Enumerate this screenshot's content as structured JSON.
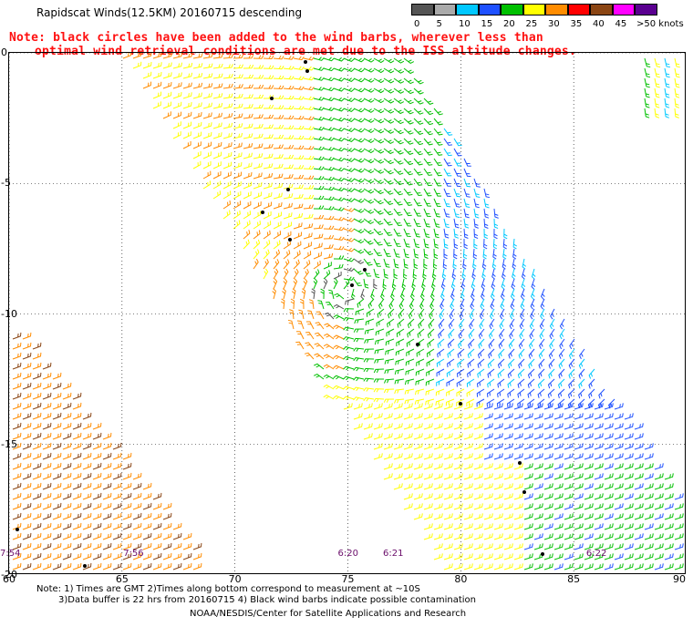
{
  "header": {
    "title": "Rapidscat Winds(12.5KM) 20160715 descending",
    "note_line1": "Note: black circles have been added to the wind barbs, wherever less than",
    "note_line2": "optimal wind retrieval conditions are met due to the ISS altitude changes."
  },
  "colorbar": {
    "units": "knots",
    "bins": [
      {
        "label": "0",
        "color": "#555555"
      },
      {
        "label": "5",
        "color": "#aaaaaa"
      },
      {
        "label": "10",
        "color": "#00c8ff"
      },
      {
        "label": "15",
        "color": "#1e50ff"
      },
      {
        "label": "20",
        "color": "#00c000"
      },
      {
        "label": "25",
        "color": "#ffff00"
      },
      {
        "label": "30",
        "color": "#ff8c00"
      },
      {
        "label": "35",
        "color": "#ff0000"
      },
      {
        "label": "40",
        "color": "#8b4513"
      },
      {
        "label": "45",
        "color": "#ff00ff"
      },
      {
        "label": ">50 knots",
        "color": "#5a0090"
      }
    ]
  },
  "map": {
    "lat_labels": [
      "0",
      "-5",
      "-10",
      "-15",
      "-20"
    ],
    "lat_values": [
      0,
      -5,
      -10,
      -15,
      -20
    ],
    "lon_labels": [
      "60",
      "65",
      "70",
      "75",
      "80",
      "85",
      "90"
    ],
    "lon_values": [
      60,
      65,
      70,
      75,
      80,
      85,
      90
    ],
    "lon_range": [
      60,
      90
    ],
    "lat_range": [
      0,
      -20
    ],
    "time_labels": [
      {
        "text": "7:54",
        "lon": 60.0
      },
      {
        "text": "7:56",
        "lon": 65.5
      },
      {
        "text": "6:20",
        "lon": 75.0
      },
      {
        "text": "6:21",
        "lon": 77.0
      },
      {
        "text": "6:22",
        "lon": 86.0
      }
    ]
  },
  "footer": {
    "line1": "Note: 1) Times are GMT 2)Times along bottom correspond to measurement at ~10S",
    "line2": "3)Data buffer is 22 hrs from 20160715 4) Black wind barbs indicate possible contamination",
    "line3": "NOAA/NESDIS/Center for Satellite Applications and Research"
  }
}
